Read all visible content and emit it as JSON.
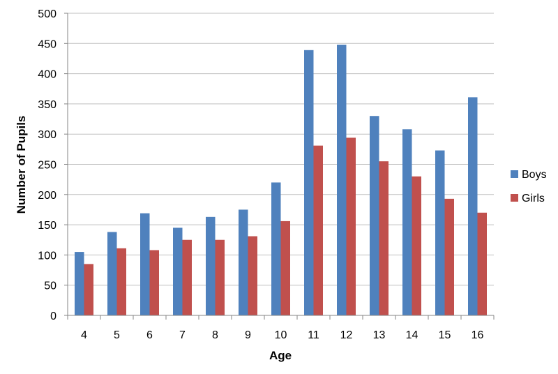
{
  "chart_data": {
    "type": "bar",
    "title": "",
    "xlabel": "Age",
    "ylabel": "Number of Pupils",
    "categories": [
      "4",
      "5",
      "6",
      "7",
      "8",
      "9",
      "10",
      "11",
      "12",
      "13",
      "14",
      "15",
      "16"
    ],
    "series": [
      {
        "name": "Boys",
        "color": "#4f81bd",
        "values": [
          105,
          138,
          169,
          145,
          163,
          175,
          220,
          439,
          448,
          330,
          308,
          273,
          361
        ]
      },
      {
        "name": "Girls",
        "color": "#c0504d",
        "values": [
          85,
          111,
          108,
          125,
          125,
          131,
          156,
          281,
          294,
          255,
          230,
          193,
          170
        ]
      }
    ],
    "ylim": [
      0,
      500
    ],
    "yticks": [
      0,
      50,
      100,
      150,
      200,
      250,
      300,
      350,
      400,
      450,
      500
    ],
    "grid": true,
    "legend_position": "right"
  }
}
